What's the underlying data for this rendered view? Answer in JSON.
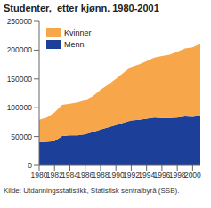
{
  "chart_data": {
    "type": "area",
    "title": "Studenter,  etter kjønn. 1980-2001",
    "source": "Kilde: Utdanningsstatistikk, Statistisk sentralbyrå (SSB).",
    "stacked": true,
    "legend": "upper left",
    "grid": false,
    "x": [
      1980,
      1981,
      1982,
      1983,
      1984,
      1985,
      1986,
      1987,
      1988,
      1989,
      1990,
      1991,
      1992,
      1993,
      1994,
      1995,
      1996,
      1997,
      1998,
      1999,
      2000,
      2001
    ],
    "xlim": [
      1980,
      2001
    ],
    "xticks": [
      1980,
      1982,
      1984,
      1986,
      1988,
      1990,
      1992,
      1994,
      1996,
      1998,
      2000
    ],
    "ylim": [
      0,
      250000
    ],
    "yticks": [
      0,
      50000,
      100000,
      150000,
      200000,
      250000
    ],
    "series": [
      {
        "name": "Kvinner",
        "color": "#f7a64a",
        "values": [
          39000,
          42000,
          50000,
          54000,
          55000,
          57000,
          59000,
          62000,
          69000,
          74000,
          80000,
          87000,
          93000,
          96000,
          100000,
          104000,
          108000,
          110000,
          114000,
          118000,
          121000,
          125000
        ]
      },
      {
        "name": "Menn",
        "color": "#1c3f99",
        "values": [
          40000,
          41000,
          42000,
          51000,
          52000,
          52000,
          54000,
          58000,
          62000,
          66000,
          70000,
          74000,
          78000,
          79000,
          81000,
          83000,
          82000,
          82000,
          83000,
          85000,
          84000,
          86000
        ]
      }
    ]
  }
}
